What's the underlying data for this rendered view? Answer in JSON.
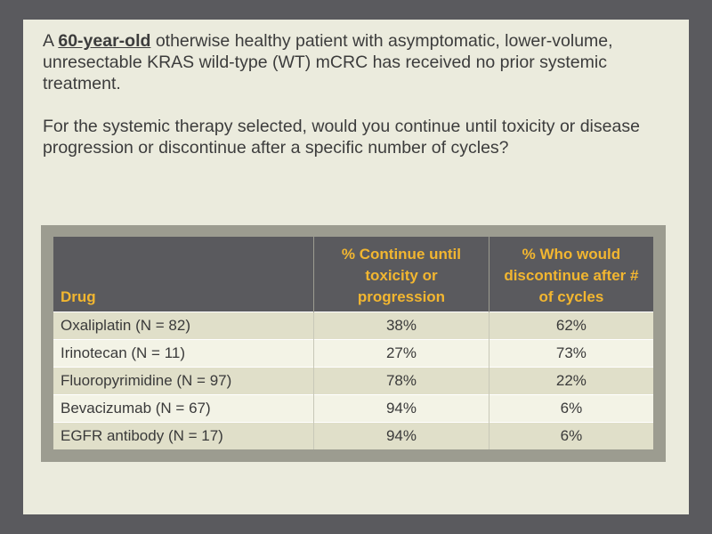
{
  "question": {
    "prefix": "A ",
    "highlight": "60-year-old",
    "rest": " otherwise healthy patient with asymptomatic, lower-volume, unresectable KRAS wild-type (WT) mCRC has received no prior systemic treatment.",
    "second": "For the systemic therapy selected, would you continue until toxicity or disease progression or discontinue after a specific number of cycles?"
  },
  "table": {
    "headers": [
      "Drug",
      "% Continue until toxicity or progression",
      "% Who would discontinue after # of cycles"
    ],
    "rows": [
      [
        "Oxaliplatin (N = 82)",
        "38%",
        "62%"
      ],
      [
        "Irinotecan (N = 11)",
        "27%",
        "73%"
      ],
      [
        "Fluoropyrimidine (N = 97)",
        "78%",
        "22%"
      ],
      [
        "Bevacizumab (N = 67)",
        "94%",
        "6%"
      ],
      [
        "EGFR antibody (N = 17)",
        "94%",
        "6%"
      ]
    ]
  },
  "colors": {
    "background": "#5a5a5e",
    "slide": "#ebebdd",
    "header_bg": "#5a5a5e",
    "header_text": "#f2b630",
    "row_odd": "#e0dfc9",
    "row_even": "#f3f3e6",
    "frame": "#9c9c90"
  }
}
